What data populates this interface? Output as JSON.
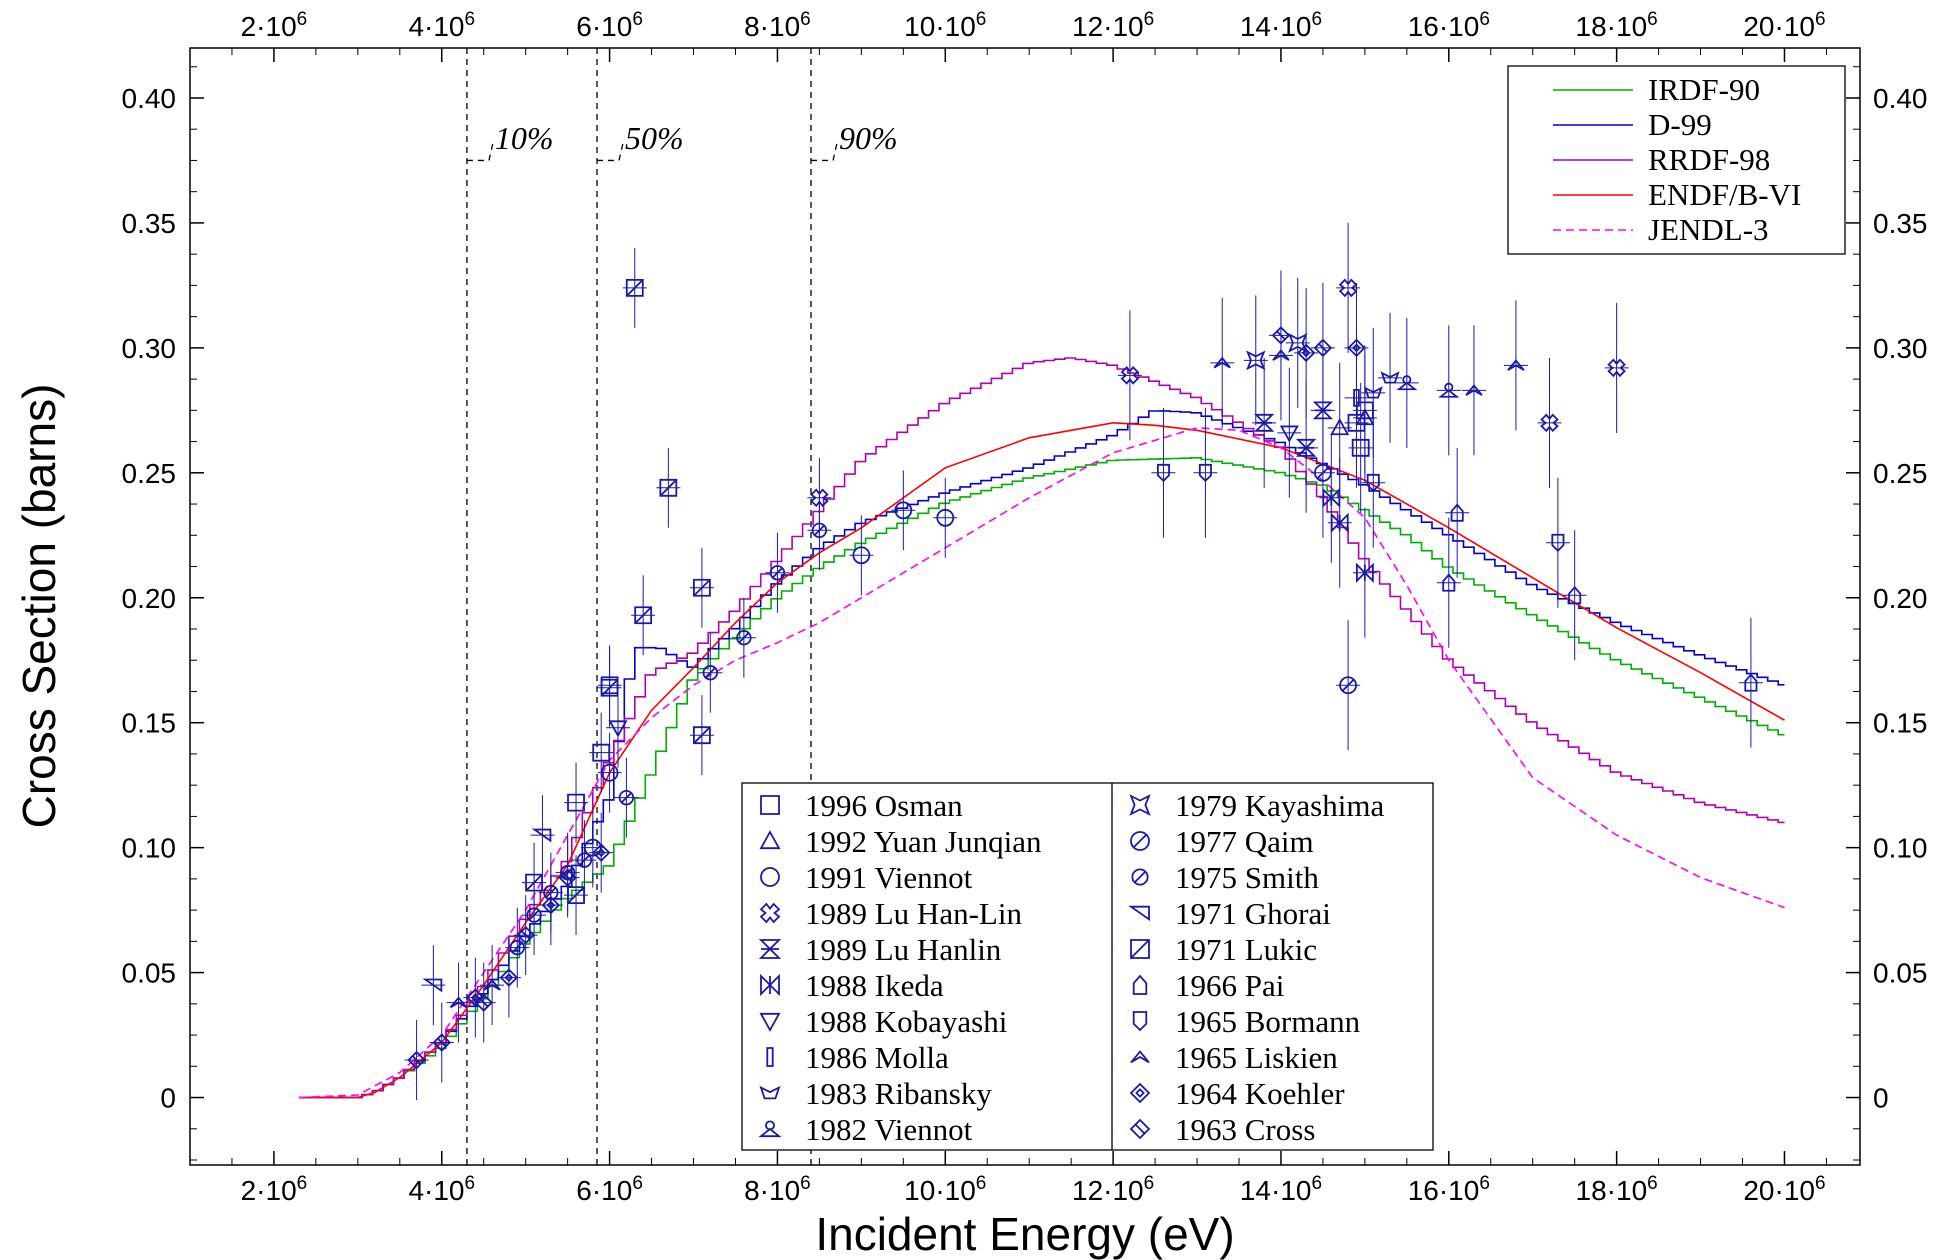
{
  "chart_data": {
    "type": "line",
    "xlabel": "Incident Energy (eV)",
    "ylabel": "Cross Section (barns)",
    "xlim": [
      1000000,
      20900000
    ],
    "ylim": [
      -0.027,
      0.42
    ],
    "x_ticks": [
      2000000,
      4000000,
      6000000,
      8000000,
      10000000,
      12000000,
      14000000,
      16000000,
      18000000,
      20000000
    ],
    "x_tick_labels": [
      {
        "m": "2·10",
        "e": "6"
      },
      {
        "m": "4·10",
        "e": "6"
      },
      {
        "m": "6·10",
        "e": "6"
      },
      {
        "m": "8·10",
        "e": "6"
      },
      {
        "m": "10·10",
        "e": "6"
      },
      {
        "m": "12·10",
        "e": "6"
      },
      {
        "m": "14·10",
        "e": "6"
      },
      {
        "m": "16·10",
        "e": "6"
      },
      {
        "m": "18·10",
        "e": "6"
      },
      {
        "m": "20·10",
        "e": "6"
      }
    ],
    "y_ticks": [
      0,
      0.05,
      0.1,
      0.15,
      0.2,
      0.25,
      0.3,
      0.35,
      0.4
    ],
    "y_tick_labels": [
      "0",
      "0.05",
      "0.10",
      "0.15",
      "0.20",
      "0.25",
      "0.30",
      "0.35",
      "0.40"
    ],
    "grid": false,
    "legend_position": "top-right",
    "annotations": [
      {
        "x": 4300000,
        "label": "10%"
      },
      {
        "x": 5850000,
        "label": "50%"
      },
      {
        "x": 8400000,
        "label": "90%"
      }
    ],
    "series": [
      {
        "name": "IRDF-90",
        "color": "#00b000",
        "style": "step",
        "x": [
          2300000,
          3000000,
          3200000,
          3500000,
          4000000,
          4500000,
          5000000,
          5500000,
          6000000,
          6500000,
          7000000,
          7500000,
          8000000,
          8500000,
          9000000,
          9500000,
          10000000,
          11000000,
          12000000,
          13000000,
          14000000,
          14500000,
          15000000,
          15500000,
          16000000,
          17000000,
          18000000,
          19000000,
          20000000
        ],
        "y": [
          0,
          0,
          0.002,
          0.008,
          0.02,
          0.04,
          0.062,
          0.08,
          0.093,
          0.13,
          0.168,
          0.184,
          0.2,
          0.212,
          0.222,
          0.23,
          0.238,
          0.248,
          0.255,
          0.256,
          0.25,
          0.245,
          0.235,
          0.225,
          0.212,
          0.193,
          0.175,
          0.16,
          0.145
        ]
      },
      {
        "name": "D-99",
        "color": "#0000d0",
        "style": "step",
        "x": [
          2300000,
          3000000,
          3200000,
          3500000,
          4000000,
          4500000,
          5000000,
          5500000,
          6000000,
          6300000,
          6600000,
          7000000,
          7500000,
          8000000,
          8500000,
          9000000,
          10000000,
          11000000,
          12000000,
          12500000,
          13000000,
          14000000,
          15000000,
          16000000,
          17000000,
          18000000,
          19000000,
          20000000
        ],
        "y": [
          0,
          0,
          0.002,
          0.008,
          0.022,
          0.042,
          0.065,
          0.085,
          0.12,
          0.18,
          0.18,
          0.172,
          0.188,
          0.206,
          0.22,
          0.23,
          0.242,
          0.252,
          0.265,
          0.275,
          0.274,
          0.262,
          0.245,
          0.225,
          0.205,
          0.19,
          0.177,
          0.165
        ]
      },
      {
        "name": "RRDF-98",
        "color": "#b000b0",
        "style": "step",
        "x": [
          2300000,
          3000000,
          3200000,
          3500000,
          4000000,
          4500000,
          5000000,
          5500000,
          6000000,
          6500000,
          7000000,
          7500000,
          8000000,
          8500000,
          9000000,
          10000000,
          11000000,
          11500000,
          12000000,
          13000000,
          14000000,
          14500000,
          15000000,
          15500000,
          16000000,
          17000000,
          18000000,
          19000000,
          20000000
        ],
        "y": [
          0,
          0,
          0.002,
          0.008,
          0.022,
          0.045,
          0.072,
          0.095,
          0.135,
          0.17,
          0.178,
          0.195,
          0.215,
          0.235,
          0.255,
          0.278,
          0.294,
          0.296,
          0.293,
          0.28,
          0.26,
          0.24,
          0.215,
          0.195,
          0.175,
          0.15,
          0.13,
          0.118,
          0.11
        ]
      },
      {
        "name": "ENDF/B-VI",
        "color": "#ff0000",
        "style": "line",
        "x": [
          2300000,
          3000000,
          3200000,
          3500000,
          4000000,
          4500000,
          5000000,
          5500000,
          6000000,
          6500000,
          7000000,
          7500000,
          8000000,
          8500000,
          9000000,
          10000000,
          11000000,
          12000000,
          12500000,
          13000000,
          14000000,
          15000000,
          16000000,
          17000000,
          18000000,
          19000000,
          20000000
        ],
        "y": [
          0,
          0,
          0.002,
          0.008,
          0.022,
          0.045,
          0.07,
          0.093,
          0.13,
          0.155,
          0.172,
          0.19,
          0.206,
          0.218,
          0.228,
          0.252,
          0.264,
          0.27,
          0.269,
          0.267,
          0.26,
          0.247,
          0.228,
          0.208,
          0.188,
          0.17,
          0.151
        ]
      },
      {
        "name": "JENDL-3",
        "color": "#ff00ff",
        "style": "dashed",
        "x": [
          2300000,
          3000000,
          3500000,
          4000000,
          4500000,
          5000000,
          5500000,
          6000000,
          6500000,
          7000000,
          7500000,
          8000000,
          8500000,
          9000000,
          10000000,
          11000000,
          12000000,
          13000000,
          13500000,
          14000000,
          14500000,
          15000000,
          15500000,
          16000000,
          17000000,
          18000000,
          19000000,
          20000000
        ],
        "y": [
          0,
          0.001,
          0.01,
          0.025,
          0.05,
          0.075,
          0.105,
          0.135,
          0.152,
          0.165,
          0.175,
          0.182,
          0.19,
          0.2,
          0.22,
          0.24,
          0.258,
          0.268,
          0.267,
          0.26,
          0.247,
          0.232,
          0.205,
          0.175,
          0.128,
          0.105,
          0.088,
          0.076
        ]
      }
    ],
    "experimental_sets": [
      {
        "label": "1996 Osman",
        "marker": "square",
        "points": [
          [
            5900000,
            0.138
          ],
          [
            6000000,
            0.165
          ],
          [
            5600000,
            0.118
          ],
          [
            14900000,
            0.27
          ],
          [
            15000000,
            0.275
          ],
          [
            14950000,
            0.26
          ]
        ]
      },
      {
        "label": "1992 Yuan Junqian",
        "marker": "triangle-up",
        "points": [
          [
            15000000,
            0.272
          ],
          [
            14700000,
            0.268
          ]
        ]
      },
      {
        "label": "1991 Viennot",
        "marker": "circle",
        "points": [
          [
            9000000,
            0.217
          ],
          [
            9500000,
            0.235
          ],
          [
            10000000,
            0.232
          ],
          [
            6000000,
            0.13
          ],
          [
            5800000,
            0.1
          ]
        ]
      },
      {
        "label": "1989 Lu Han-Lin",
        "marker": "cross-x",
        "points": [
          [
            8500000,
            0.24
          ],
          [
            12200000,
            0.289
          ],
          [
            17200000,
            0.27
          ],
          [
            18000000,
            0.292
          ],
          [
            14800000,
            0.324
          ]
        ]
      },
      {
        "label": "1989 Lu Hanlin",
        "marker": "hourglass",
        "points": [
          [
            13800000,
            0.27
          ],
          [
            14300000,
            0.26
          ],
          [
            14500000,
            0.275
          ]
        ]
      },
      {
        "label": "1988 Ikeda",
        "marker": "bowtie",
        "points": [
          [
            14600000,
            0.24
          ],
          [
            14700000,
            0.23
          ],
          [
            15000000,
            0.21
          ]
        ]
      },
      {
        "label": "1988 Kobayashi",
        "marker": "triangle-down",
        "points": [
          [
            14100000,
            0.266
          ],
          [
            6100000,
            0.148
          ]
        ]
      },
      {
        "label": "1986 Molla",
        "marker": "thin-rect",
        "points": [
          [
            14900000,
            0.28
          ]
        ]
      },
      {
        "label": "1983 Ribansky",
        "marker": "boat",
        "points": [
          [
            15100000,
            0.282
          ],
          [
            15300000,
            0.288
          ]
        ]
      },
      {
        "label": "1982 Viennot",
        "marker": "club",
        "points": [
          [
            15500000,
            0.286
          ],
          [
            16000000,
            0.283
          ]
        ]
      },
      {
        "label": "1979 Kayashima",
        "marker": "star",
        "points": [
          [
            13700000,
            0.295
          ],
          [
            14200000,
            0.302
          ]
        ]
      },
      {
        "label": "1977 Qaim",
        "marker": "circle-slash",
        "points": [
          [
            14800000,
            0.165
          ],
          [
            14500000,
            0.25
          ]
        ]
      },
      {
        "label": "1975 Smith",
        "marker": "circle-slash-small",
        "points": [
          [
            4900000,
            0.06
          ],
          [
            5100000,
            0.073
          ],
          [
            5300000,
            0.082
          ],
          [
            5500000,
            0.09
          ],
          [
            5700000,
            0.095
          ],
          [
            6200000,
            0.12
          ],
          [
            7200000,
            0.17
          ],
          [
            7600000,
            0.184
          ],
          [
            8000000,
            0.21
          ],
          [
            8500000,
            0.227
          ]
        ]
      },
      {
        "label": "1971 Ghorai",
        "marker": "left-tri",
        "points": [
          [
            3900000,
            0.045
          ],
          [
            5200000,
            0.105
          ]
        ]
      },
      {
        "label": "1971 Lukic",
        "marker": "square-slash",
        "points": [
          [
            6300000,
            0.324
          ],
          [
            6700000,
            0.244
          ],
          [
            6400000,
            0.193
          ],
          [
            7100000,
            0.204
          ],
          [
            7100000,
            0.145
          ],
          [
            5100000,
            0.086
          ],
          [
            5600000,
            0.081
          ],
          [
            6000000,
            0.164
          ]
        ]
      },
      {
        "label": "1966 Pai",
        "marker": "house",
        "points": [
          [
            16000000,
            0.206
          ],
          [
            17500000,
            0.201
          ],
          [
            19600000,
            0.166
          ],
          [
            16100000,
            0.234
          ]
        ]
      },
      {
        "label": "1965 Bormann",
        "marker": "shield",
        "points": [
          [
            12600000,
            0.25
          ],
          [
            13100000,
            0.25
          ],
          [
            15100000,
            0.246
          ],
          [
            17300000,
            0.222
          ]
        ]
      },
      {
        "label": "1965 Liskien",
        "marker": "chevron",
        "points": [
          [
            4200000,
            0.038
          ],
          [
            4600000,
            0.045
          ],
          [
            13300000,
            0.294
          ],
          [
            14000000,
            0.297
          ],
          [
            16800000,
            0.293
          ],
          [
            16300000,
            0.283
          ]
        ]
      },
      {
        "label": "1964 Koehler",
        "marker": "diamond-dot",
        "points": [
          [
            4400000,
            0.04
          ],
          [
            4800000,
            0.048
          ],
          [
            5300000,
            0.077
          ],
          [
            5900000,
            0.098
          ],
          [
            14300000,
            0.298
          ],
          [
            14900000,
            0.3
          ]
        ]
      },
      {
        "label": "1963 Cross",
        "marker": "diamond-cross",
        "points": [
          [
            3700000,
            0.015
          ],
          [
            4000000,
            0.022
          ],
          [
            4500000,
            0.038
          ],
          [
            5000000,
            0.065
          ],
          [
            5500000,
            0.088
          ],
          [
            14000000,
            0.305
          ],
          [
            14500000,
            0.3
          ]
        ]
      }
    ]
  }
}
